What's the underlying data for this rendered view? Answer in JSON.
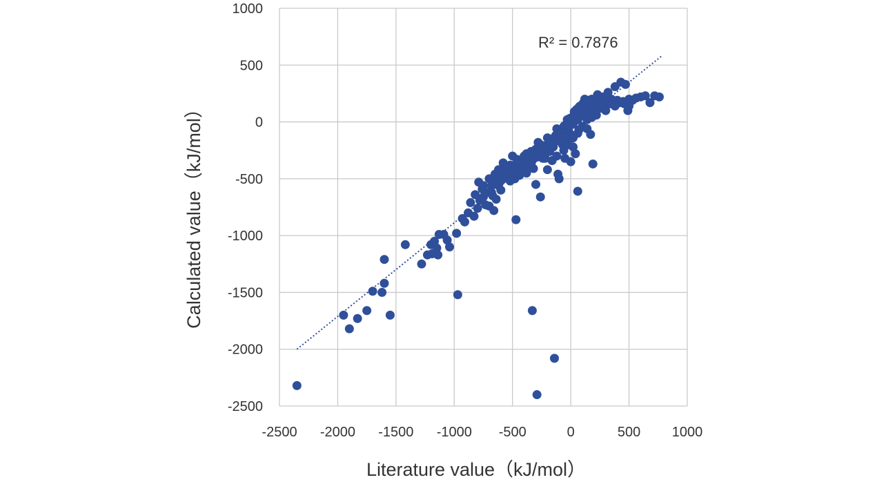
{
  "chart_data": {
    "type": "scatter",
    "xlabel": "Literature value（kJ/mol）",
    "ylabel": "Calculated value（kJ/mol）",
    "xlim": [
      -2500,
      1000
    ],
    "ylim": [
      -2500,
      1000
    ],
    "xticks": [
      "-2500",
      "-2000",
      "-1500",
      "-1000",
      "-500",
      "0",
      "500",
      "1000"
    ],
    "yticks": [
      "1000",
      "500",
      "0",
      "-500",
      "-1000",
      "-1500",
      "-2000",
      "-2500"
    ],
    "grid": true,
    "marker_color": "#2F4F9A",
    "trendline": {
      "style": "dotted",
      "color": "#2F4F9A",
      "from": [
        -2350,
        -2000
      ],
      "to": [
        780,
        580
      ],
      "label": "R² = 0.7876"
    },
    "points": [
      [
        -2350,
        -2320
      ],
      [
        -1950,
        -1700
      ],
      [
        -1900,
        -1820
      ],
      [
        -1830,
        -1730
      ],
      [
        -1750,
        -1660
      ],
      [
        -1700,
        -1490
      ],
      [
        -1620,
        -1500
      ],
      [
        -1600,
        -1420
      ],
      [
        -1600,
        -1210
      ],
      [
        -1550,
        -1700
      ],
      [
        -1420,
        -1080
      ],
      [
        -1280,
        -1250
      ],
      [
        -1230,
        -1170
      ],
      [
        -1200,
        -1080
      ],
      [
        -1190,
        -1160
      ],
      [
        -1170,
        -1050
      ],
      [
        -1150,
        -1110
      ],
      [
        -1140,
        -1170
      ],
      [
        -1130,
        -990
      ],
      [
        -1090,
        -990
      ],
      [
        -1060,
        -1040
      ],
      [
        -1040,
        -1100
      ],
      [
        -980,
        -980
      ],
      [
        -970,
        -1520
      ],
      [
        -930,
        -850
      ],
      [
        -910,
        -880
      ],
      [
        -880,
        -800
      ],
      [
        -860,
        -710
      ],
      [
        -830,
        -830
      ],
      [
        -820,
        -640
      ],
      [
        -800,
        -760
      ],
      [
        -790,
        -530
      ],
      [
        -780,
        -690
      ],
      [
        -760,
        -590
      ],
      [
        -750,
        -660
      ],
      [
        -730,
        -730
      ],
      [
        -700,
        -740
      ],
      [
        -680,
        -620
      ],
      [
        -680,
        -560
      ],
      [
        -660,
        -780
      ],
      [
        -640,
        -680
      ],
      [
        -620,
        -560
      ],
      [
        -600,
        -600
      ],
      [
        -580,
        -500
      ],
      [
        -560,
        -460
      ],
      [
        -540,
        -400
      ],
      [
        -520,
        -520
      ],
      [
        -500,
        -420
      ],
      [
        -480,
        -380
      ],
      [
        -470,
        -860
      ],
      [
        -460,
        -330
      ],
      [
        -440,
        -470
      ],
      [
        -420,
        -380
      ],
      [
        -400,
        -300
      ],
      [
        -380,
        -450
      ],
      [
        -360,
        -350
      ],
      [
        -340,
        -260
      ],
      [
        -330,
        -1660
      ],
      [
        -320,
        -410
      ],
      [
        -300,
        -550
      ],
      [
        -290,
        -2400
      ],
      [
        -280,
        -280
      ],
      [
        -260,
        -660
      ],
      [
        -240,
        -320
      ],
      [
        -220,
        -210
      ],
      [
        -200,
        -420
      ],
      [
        -180,
        -150
      ],
      [
        -160,
        -340
      ],
      [
        -150,
        -220
      ],
      [
        -140,
        -2080
      ],
      [
        -130,
        -120
      ],
      [
        -120,
        -300
      ],
      [
        -110,
        -460
      ],
      [
        -100,
        -500
      ],
      [
        -90,
        -80
      ],
      [
        -70,
        -200
      ],
      [
        -60,
        -40
      ],
      [
        -50,
        -320
      ],
      [
        -40,
        -160
      ],
      [
        -30,
        20
      ],
      [
        -10,
        -100
      ],
      [
        0,
        -350
      ],
      [
        10,
        40
      ],
      [
        20,
        -220
      ],
      [
        30,
        90
      ],
      [
        40,
        -280
      ],
      [
        50,
        110
      ],
      [
        60,
        -610
      ],
      [
        70,
        -70
      ],
      [
        80,
        140
      ],
      [
        100,
        60
      ],
      [
        110,
        170
      ],
      [
        120,
        200
      ],
      [
        140,
        -60
      ],
      [
        150,
        120
      ],
      [
        170,
        -110
      ],
      [
        180,
        200
      ],
      [
        190,
        -370
      ],
      [
        210,
        110
      ],
      [
        230,
        240
      ],
      [
        260,
        180
      ],
      [
        280,
        220
      ],
      [
        300,
        150
      ],
      [
        320,
        260
      ],
      [
        350,
        200
      ],
      [
        380,
        310
      ],
      [
        400,
        190
      ],
      [
        430,
        350
      ],
      [
        450,
        180
      ],
      [
        470,
        330
      ],
      [
        490,
        100
      ],
      [
        500,
        200
      ],
      [
        530,
        190
      ],
      [
        560,
        210
      ],
      [
        600,
        220
      ],
      [
        640,
        230
      ],
      [
        680,
        170
      ],
      [
        720,
        230
      ],
      [
        760,
        220
      ],
      [
        -620,
        -420
      ],
      [
        -580,
        -360
      ],
      [
        -540,
        -480
      ],
      [
        -500,
        -300
      ],
      [
        -460,
        -440
      ],
      [
        -420,
        -340
      ],
      [
        -380,
        -280
      ],
      [
        -340,
        -380
      ],
      [
        -300,
        -240
      ],
      [
        -260,
        -200
      ],
      [
        -220,
        -320
      ],
      [
        -180,
        -260
      ],
      [
        -140,
        -180
      ],
      [
        -100,
        -120
      ],
      [
        -60,
        -160
      ],
      [
        -20,
        -60
      ],
      [
        20,
        -20
      ],
      [
        60,
        20
      ],
      [
        100,
        80
      ],
      [
        140,
        140
      ],
      [
        180,
        100
      ],
      [
        220,
        180
      ],
      [
        -700,
        -500
      ],
      [
        -650,
        -460
      ],
      [
        -600,
        -520
      ],
      [
        -550,
        -440
      ],
      [
        -520,
        -380
      ],
      [
        -480,
        -500
      ],
      [
        -440,
        -360
      ],
      [
        -400,
        -420
      ],
      [
        -360,
        -300
      ],
      [
        -320,
        -320
      ],
      [
        -280,
        -180
      ],
      [
        -240,
        -240
      ],
      [
        -200,
        -140
      ],
      [
        -160,
        -200
      ],
      [
        -120,
        -60
      ],
      [
        -80,
        -140
      ],
      [
        -40,
        -80
      ],
      [
        0,
        0
      ],
      [
        40,
        60
      ],
      [
        80,
        100
      ],
      [
        120,
        80
      ],
      [
        160,
        160
      ],
      [
        200,
        140
      ],
      [
        240,
        200
      ],
      [
        -750,
        -560
      ],
      [
        -720,
        -620
      ],
      [
        -670,
        -650
      ],
      [
        -640,
        -520
      ],
      [
        -610,
        -470
      ],
      [
        -570,
        -420
      ],
      [
        -530,
        -430
      ],
      [
        -490,
        -460
      ],
      [
        -450,
        -410
      ],
      [
        -410,
        -390
      ],
      [
        -370,
        -380
      ],
      [
        -330,
        -340
      ],
      [
        -290,
        -310
      ],
      [
        -250,
        -270
      ],
      [
        -210,
        -230
      ],
      [
        -170,
        -170
      ],
      [
        -130,
        -150
      ],
      [
        -90,
        -100
      ],
      [
        -50,
        -30
      ],
      [
        -10,
        30
      ],
      [
        30,
        50
      ],
      [
        70,
        130
      ],
      [
        110,
        100
      ],
      [
        150,
        190
      ],
      [
        190,
        170
      ],
      [
        -60,
        -250
      ],
      [
        -20,
        -200
      ],
      [
        20,
        -140
      ],
      [
        60,
        -100
      ],
      [
        100,
        -40
      ],
      [
        140,
        20
      ],
      [
        180,
        40
      ],
      [
        220,
        60
      ],
      [
        260,
        120
      ],
      [
        300,
        100
      ],
      [
        340,
        160
      ],
      [
        380,
        140
      ],
      [
        420,
        170
      ],
      [
        460,
        160
      ],
      [
        500,
        140
      ]
    ]
  }
}
